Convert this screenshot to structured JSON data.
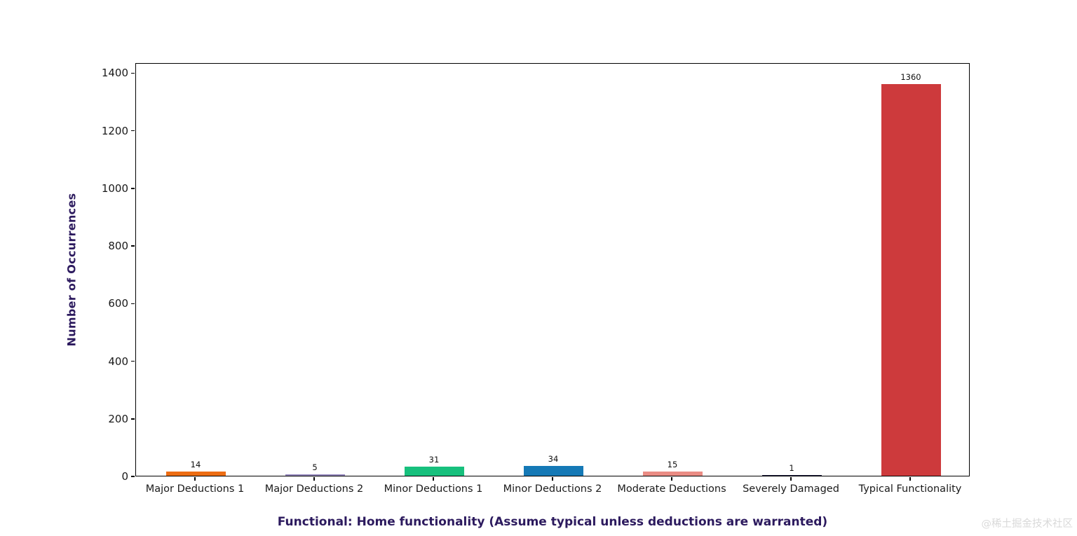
{
  "chart_data": {
    "type": "bar",
    "title": "Functional: Home functionality (Assume typical unless deductions are warranted)",
    "title_position": "bottom",
    "xlabel": "",
    "ylabel": "Number of Occurrences",
    "categories": [
      "Major Deductions 1",
      "Major Deductions 2",
      "Minor Deductions 1",
      "Minor Deductions 2",
      "Moderate Deductions",
      "Severely Damaged",
      "Typical Functionality"
    ],
    "values": [
      14,
      5,
      31,
      34,
      15,
      1,
      1360
    ],
    "bar_colors": [
      "#ed6d13",
      "#9184bb",
      "#17c07d",
      "#1579b6",
      "#ea8c84",
      "#191937",
      "#cd3a3c"
    ],
    "value_labels": [
      "14",
      "5",
      "31",
      "34",
      "15",
      "1",
      "1360"
    ],
    "yticks": [
      0,
      200,
      400,
      600,
      800,
      1000,
      1200,
      1400
    ],
    "ylim": [
      0,
      1435
    ],
    "grid": false,
    "legend": null,
    "colors": {
      "title": "#2c1a5e",
      "axis_label": "#2c1a5e",
      "tick_text": "#1a1a1a",
      "spine": "#000000",
      "background": "#ffffff"
    }
  },
  "watermark": {
    "text": "@稀土掘金技术社区",
    "color": "#d9d9d9"
  }
}
